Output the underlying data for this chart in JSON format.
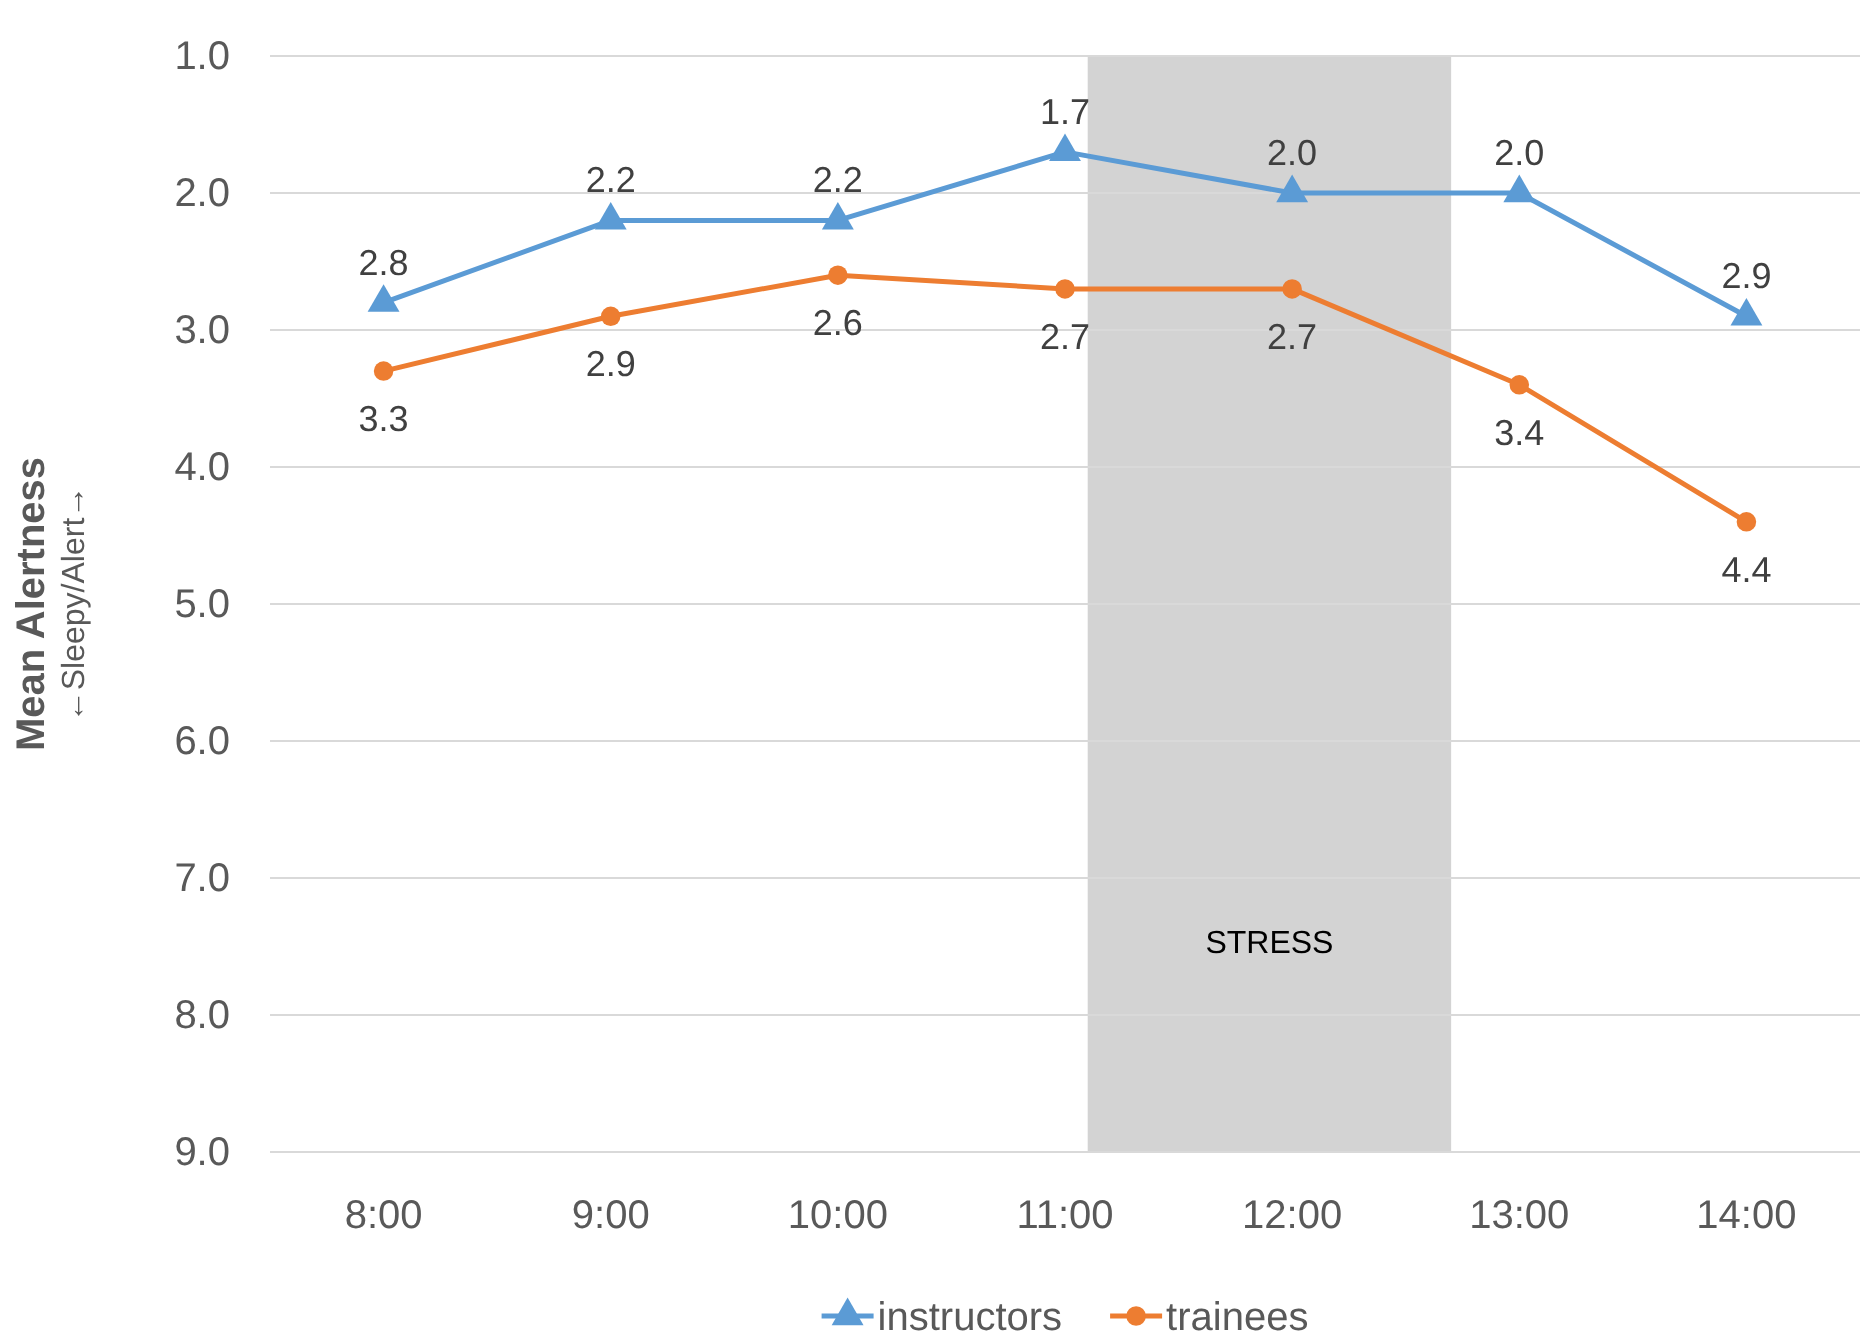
{
  "chart_data": {
    "type": "line",
    "ylabel": "Mean Alertness\n←Sleepy/Alert→",
    "x": [
      8,
      9,
      10,
      11,
      12,
      13,
      14
    ],
    "xlim": [
      7.5,
      14.5
    ],
    "xticks": [
      {
        "value": 8,
        "label": "8:00"
      },
      {
        "value": 9,
        "label": "9:00"
      },
      {
        "value": 10,
        "label": "10:00"
      },
      {
        "value": 11,
        "label": "11:00"
      },
      {
        "value": 12,
        "label": "12:00"
      },
      {
        "value": 13,
        "label": "13:00"
      },
      {
        "value": 14,
        "label": "14:00"
      }
    ],
    "ylim": [
      9,
      1
    ],
    "yticks": [
      {
        "value": 1,
        "label": "1.0"
      },
      {
        "value": 2,
        "label": "2.0"
      },
      {
        "value": 3,
        "label": "3.0"
      },
      {
        "value": 4,
        "label": "4.0"
      },
      {
        "value": 5,
        "label": "5.0"
      },
      {
        "value": 6,
        "label": "6.0"
      },
      {
        "value": 7,
        "label": "7.0"
      },
      {
        "value": 8,
        "label": "8.0"
      },
      {
        "value": 9,
        "label": "9.0"
      }
    ],
    "series": [
      {
        "name": "instructors",
        "color": "#5b9bd5",
        "marker": "triangle",
        "values": [
          2.8,
          2.2,
          2.2,
          1.7,
          2.0,
          2.0,
          2.9
        ],
        "value_labels": [
          "2.8",
          "2.2",
          "2.2",
          "1.7",
          "2.0",
          "2.0",
          "2.9"
        ]
      },
      {
        "name": "trainees",
        "color": "#ed7d31",
        "marker": "circle",
        "values": [
          3.3,
          2.9,
          2.6,
          2.7,
          2.7,
          3.4,
          4.4
        ],
        "value_labels": [
          "3.3",
          "2.9",
          "2.6",
          "2.7",
          "2.7",
          "3.4",
          "4.4"
        ]
      }
    ],
    "bands": [
      {
        "axis": "x",
        "from": 11.1,
        "to": 12.7,
        "label": "STRESS",
        "color": "#d3d3d3"
      }
    ],
    "grid": "y",
    "legend": "bottom"
  }
}
